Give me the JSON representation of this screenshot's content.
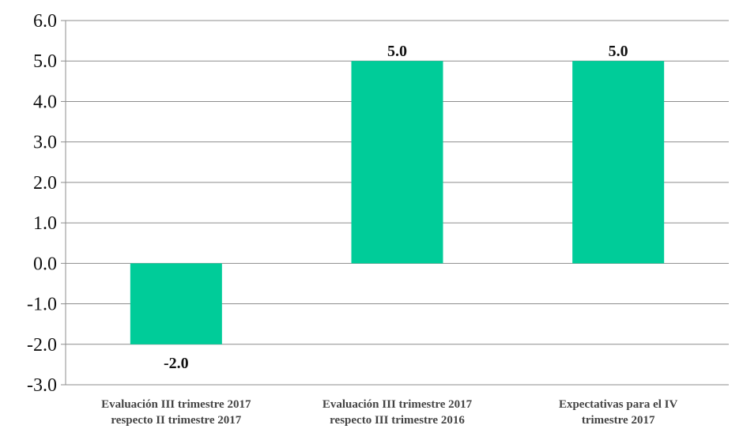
{
  "chart_data": {
    "type": "bar",
    "title": "",
    "xlabel": "",
    "ylabel": "",
    "categories": [
      [
        "Evaluación III trimestre 2017",
        "respecto II trimestre 2017"
      ],
      [
        "Evaluación III trimestre 2017",
        "respecto III trimestre 2016"
      ],
      [
        "Expectativas para el IV",
        "trimestre 2017"
      ]
    ],
    "values": [
      -2.0,
      5.0,
      5.0
    ],
    "data_labels": [
      "-2.0",
      "5.0",
      "5.0"
    ],
    "ylim": [
      -3.0,
      6.0
    ],
    "yticks": [
      6.0,
      5.0,
      4.0,
      3.0,
      2.0,
      1.0,
      0.0,
      -1.0,
      -2.0,
      -3.0
    ],
    "ytick_labels": [
      "6.0",
      "5.0",
      "4.0",
      "3.0",
      "2.0",
      "1.0",
      "0.0",
      "-1.0",
      "-2.0",
      "-3.0"
    ],
    "grid": true,
    "bar_color": "#00CC99",
    "grid_color": "#8c8c8c"
  }
}
